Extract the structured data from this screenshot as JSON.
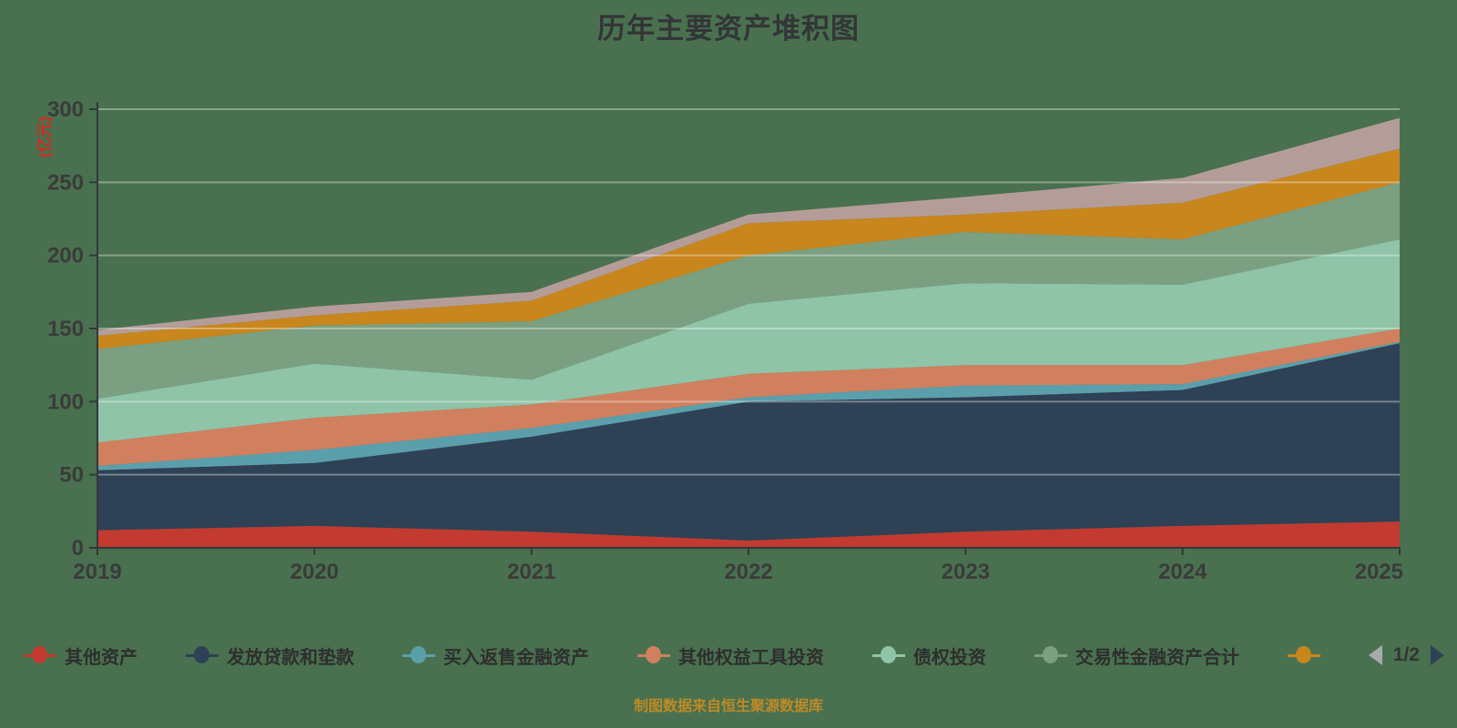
{
  "title": "历年主要资产堆积图",
  "y_axis_name": "(亿元)",
  "footer": "制图数据来自恒生聚源数据库",
  "legend": {
    "page_indicator": "1/2",
    "items": [
      {
        "label": "其他资产",
        "color": "#c23a30"
      },
      {
        "label": "发放贷款和垫款",
        "color": "#2e4155"
      },
      {
        "label": "买入返售金融资产",
        "color": "#5b9fac"
      },
      {
        "label": "其他权益工具投资",
        "color": "#d1805f"
      },
      {
        "label": "债权投资",
        "color": "#8fc4a8"
      },
      {
        "label": "交易性金融资产合计",
        "color": "#7ba081"
      },
      {
        "label": "",
        "color": "#c8861d"
      }
    ]
  },
  "chart_data": {
    "type": "area",
    "stacked": true,
    "title": "历年主要资产堆积图",
    "ylabel": "(亿元)",
    "x": [
      2019,
      2020,
      2021,
      2022,
      2023,
      2024,
      2025
    ],
    "ylim": [
      0,
      300
    ],
    "ytick_step": 50,
    "grid": true,
    "legend_position": "bottom",
    "series": [
      {
        "name": "其他资产",
        "color": "#c23a30",
        "values": [
          12,
          15,
          11,
          5,
          11,
          15,
          18
        ]
      },
      {
        "name": "发放贷款和垫款",
        "color": "#2e4155",
        "values": [
          41,
          43,
          65,
          95,
          92,
          93,
          122
        ]
      },
      {
        "name": "买入返售金融资产",
        "color": "#5b9fac",
        "values": [
          3,
          9,
          6,
          3,
          8,
          4,
          1
        ]
      },
      {
        "name": "其他权益工具投资",
        "color": "#d1805f",
        "values": [
          16,
          22,
          16,
          16,
          14,
          13,
          9
        ]
      },
      {
        "name": "债权投资",
        "color": "#8fc4a8",
        "values": [
          30,
          37,
          17,
          48,
          56,
          55,
          61
        ]
      },
      {
        "name": "交易性金融资产合计",
        "color": "#7ba081",
        "values": [
          34,
          26,
          40,
          33,
          35,
          31,
          39
        ]
      },
      {
        "name": "",
        "color": "#c8861d",
        "values": [
          9,
          7,
          14,
          22,
          12,
          25,
          23
        ]
      },
      {
        "name": "",
        "color": "#b49d98",
        "values": [
          4,
          6,
          6,
          6,
          12,
          17,
          21
        ]
      }
    ],
    "stack_totals": [
      149,
      165,
      175,
      228,
      240,
      253,
      294
    ]
  }
}
